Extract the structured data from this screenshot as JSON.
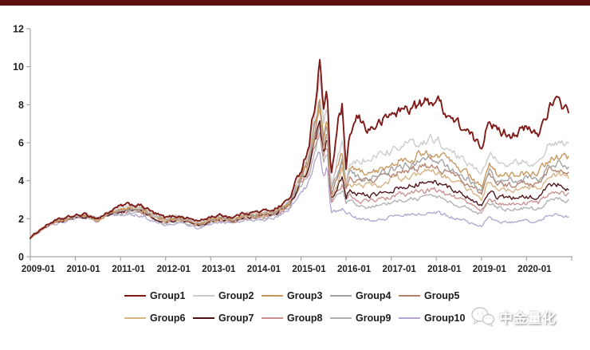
{
  "page": {
    "top_bar_color": "#5E0F10",
    "background_color": "#FFFFFF",
    "axis_line_color": "#A6A6A6",
    "watermark": {
      "text": "中金量化",
      "icon": "wechat-bubbles-icon"
    }
  },
  "chart_data": {
    "type": "line",
    "title": "",
    "xlabel": "",
    "ylabel": "",
    "grid": false,
    "legend_position": "bottom",
    "y_axis": {
      "range": [
        0,
        12
      ],
      "ticks": [
        0,
        2,
        4,
        6,
        8,
        10,
        12
      ],
      "tick_labels": [
        "0",
        "2",
        "4",
        "6",
        "8",
        "10",
        "12"
      ]
    },
    "x_axis": {
      "unit": "months since 2009-01",
      "tick_labels": [
        "2009-01",
        "2010-01",
        "2011-01",
        "2012-01",
        "2013-01",
        "2014-01",
        "2015-01",
        "2016-01",
        "2017-01",
        "2018-01",
        "2019-01",
        "2020-01"
      ],
      "range_months": [
        0,
        144
      ]
    },
    "x_months": [
      0,
      3,
      6,
      9,
      12,
      15,
      18,
      21,
      24,
      27,
      30,
      33,
      36,
      39,
      42,
      45,
      48,
      51,
      54,
      57,
      60,
      63,
      66,
      69,
      72,
      74,
      76,
      77,
      78,
      79,
      80,
      82,
      83,
      84,
      85,
      87,
      90,
      93,
      96,
      100,
      104,
      108,
      112,
      116,
      120,
      122,
      124,
      128,
      132,
      135,
      138,
      141,
      143
    ],
    "series": [
      {
        "name": "Group1",
        "color": "#7E1A17",
        "values": [
          1.0,
          1.49,
          1.85,
          2.01,
          2.16,
          2.21,
          2.01,
          2.37,
          2.65,
          2.75,
          2.65,
          2.27,
          2.05,
          2.16,
          2.03,
          1.86,
          2.11,
          2.18,
          2.08,
          2.32,
          2.35,
          2.43,
          2.59,
          3.08,
          4.59,
          5.78,
          8.5,
          10.3,
          7.7,
          8.5,
          4.2,
          7.2,
          7.9,
          4.4,
          6.4,
          7.3,
          6.7,
          7.0,
          7.5,
          7.8,
          8.0,
          8.3,
          7.3,
          6.6,
          5.7,
          7.5,
          6.6,
          6.5,
          6.7,
          6.4,
          7.9,
          8.1,
          7.7
        ]
      },
      {
        "name": "Group2",
        "color": "#CBCBCB",
        "values": [
          1.0,
          1.48,
          1.84,
          1.99,
          2.14,
          2.19,
          1.99,
          2.35,
          2.57,
          2.68,
          2.57,
          2.21,
          2.0,
          2.1,
          1.97,
          1.81,
          2.05,
          2.12,
          2.05,
          2.26,
          2.29,
          2.36,
          2.52,
          2.99,
          4.39,
          5.39,
          7.68,
          9.2,
          6.84,
          7.8,
          3.7,
          5.33,
          6.13,
          4.0,
          5.06,
          5.02,
          5.16,
          5.28,
          5.64,
          5.88,
          6.12,
          6.24,
          5.64,
          5.04,
          4.2,
          5.6,
          5.0,
          4.92,
          5.0,
          4.8,
          5.9,
          6.1,
          5.8
        ]
      },
      {
        "name": "Group3",
        "color": "#C8965A",
        "values": [
          1.0,
          1.47,
          1.83,
          1.98,
          2.13,
          2.18,
          1.98,
          2.33,
          2.54,
          2.64,
          2.54,
          2.17,
          1.97,
          2.07,
          1.95,
          1.78,
          2.02,
          2.09,
          2.02,
          2.23,
          2.26,
          2.33,
          2.48,
          2.95,
          4.28,
          5.19,
          7.34,
          8.6,
          6.43,
          7.3,
          3.5,
          4.82,
          5.49,
          3.8,
          4.62,
          4.46,
          4.52,
          4.62,
          4.94,
          5.15,
          5.36,
          5.46,
          4.94,
          4.41,
          3.78,
          4.94,
          4.36,
          4.31,
          4.41,
          4.31,
          5.15,
          5.3,
          5.1
        ]
      },
      {
        "name": "Group4",
        "color": "#A0A0A0",
        "values": [
          1.0,
          1.46,
          1.82,
          1.97,
          2.12,
          2.17,
          1.97,
          2.32,
          2.5,
          2.6,
          2.5,
          2.14,
          1.94,
          2.04,
          1.92,
          1.75,
          1.99,
          2.06,
          1.99,
          2.19,
          2.22,
          2.3,
          2.45,
          2.91,
          4.2,
          5.05,
          7.11,
          8.3,
          6.2,
          7.04,
          3.4,
          4.56,
          5.19,
          3.69,
          4.4,
          4.21,
          4.21,
          4.31,
          4.61,
          4.8,
          5.0,
          5.1,
          4.61,
          4.12,
          3.53,
          4.61,
          4.07,
          4.02,
          4.12,
          4.02,
          4.8,
          4.95,
          4.75
        ]
      },
      {
        "name": "Group5",
        "color": "#B5826E",
        "values": [
          1.0,
          1.46,
          1.81,
          1.96,
          2.11,
          2.16,
          1.96,
          2.31,
          2.46,
          2.56,
          2.46,
          2.11,
          1.91,
          2.01,
          1.89,
          1.73,
          1.96,
          2.03,
          1.96,
          2.16,
          2.19,
          2.26,
          2.41,
          2.86,
          4.12,
          4.92,
          6.87,
          8.0,
          5.96,
          6.77,
          3.3,
          4.3,
          4.9,
          3.53,
          4.14,
          3.95,
          3.96,
          4.05,
          4.32,
          4.51,
          4.69,
          4.78,
          4.32,
          3.86,
          3.31,
          4.32,
          3.82,
          3.77,
          3.86,
          3.77,
          4.51,
          4.65,
          4.46
        ]
      },
      {
        "name": "Group6",
        "color": "#D6B383",
        "values": [
          1.0,
          1.45,
          1.8,
          1.95,
          2.1,
          2.15,
          1.95,
          2.3,
          2.43,
          2.52,
          2.43,
          2.08,
          1.88,
          1.98,
          1.86,
          1.7,
          1.93,
          2.0,
          1.93,
          2.13,
          2.16,
          2.23,
          2.38,
          2.82,
          4.04,
          4.78,
          6.6,
          7.7,
          5.72,
          6.5,
          3.2,
          4.09,
          4.61,
          3.42,
          3.92,
          3.7,
          3.7,
          3.78,
          4.04,
          4.21,
          4.39,
          4.47,
          4.04,
          3.61,
          3.1,
          4.04,
          3.57,
          3.53,
          3.61,
          3.53,
          4.21,
          4.34,
          4.17
        ]
      },
      {
        "name": "Group7",
        "color": "#4C1014",
        "values": [
          1.0,
          1.44,
          1.79,
          1.94,
          2.09,
          2.14,
          1.94,
          2.29,
          2.38,
          2.47,
          2.38,
          2.04,
          1.84,
          1.94,
          1.82,
          1.67,
          1.89,
          1.96,
          1.89,
          2.09,
          2.11,
          2.18,
          2.33,
          2.76,
          3.92,
          4.61,
          6.32,
          7.3,
          5.46,
          6.2,
          3.07,
          3.78,
          4.21,
          3.19,
          3.56,
          3.32,
          3.25,
          3.32,
          3.55,
          3.7,
          3.85,
          3.93,
          3.55,
          3.17,
          2.72,
          3.55,
          3.13,
          3.1,
          3.17,
          3.1,
          3.7,
          3.81,
          3.6
        ]
      },
      {
        "name": "Group8",
        "color": "#CC8F8F",
        "values": [
          1.0,
          1.44,
          1.78,
          1.93,
          2.08,
          2.13,
          1.93,
          2.28,
          2.33,
          2.42,
          2.33,
          2.0,
          1.81,
          1.9,
          1.79,
          1.63,
          1.85,
          1.92,
          1.85,
          2.04,
          2.07,
          2.14,
          2.28,
          2.71,
          3.81,
          4.41,
          6.02,
          6.9,
          5.16,
          5.86,
          2.9,
          3.53,
          3.87,
          3.0,
          3.3,
          2.98,
          2.9,
          2.97,
          3.17,
          3.31,
          3.44,
          3.51,
          3.17,
          2.84,
          2.43,
          3.17,
          2.8,
          2.77,
          2.84,
          2.77,
          3.31,
          3.41,
          3.27
        ]
      },
      {
        "name": "Group9",
        "color": "#B0B0B0",
        "values": [
          1.0,
          1.42,
          1.76,
          1.91,
          2.06,
          2.11,
          1.91,
          2.25,
          2.27,
          2.36,
          2.27,
          1.94,
          1.76,
          1.85,
          1.74,
          1.59,
          1.8,
          1.87,
          1.8,
          1.99,
          2.02,
          2.08,
          2.22,
          2.64,
          3.69,
          4.21,
          5.71,
          6.5,
          4.87,
          5.53,
          2.74,
          3.27,
          3.58,
          2.81,
          3.08,
          2.72,
          2.62,
          2.68,
          2.87,
          2.99,
          3.11,
          3.17,
          2.87,
          2.56,
          2.2,
          2.87,
          2.53,
          2.5,
          2.56,
          2.5,
          2.99,
          3.08,
          2.96
        ]
      },
      {
        "name": "Group10",
        "color": "#B3A6CF",
        "values": [
          1.0,
          1.39,
          1.73,
          1.87,
          2.02,
          2.06,
          1.87,
          2.21,
          2.16,
          2.24,
          2.16,
          1.85,
          1.67,
          1.76,
          1.65,
          1.51,
          1.72,
          1.78,
          1.72,
          1.89,
          1.92,
          1.98,
          2.11,
          2.51,
          3.44,
          3.82,
          5.07,
          5.6,
          4.19,
          4.76,
          2.38,
          2.37,
          2.45,
          2.2,
          2.29,
          2.0,
          1.91,
          1.96,
          2.09,
          2.18,
          2.27,
          2.31,
          2.09,
          1.87,
          1.6,
          2.09,
          1.85,
          1.82,
          1.87,
          1.82,
          2.18,
          2.25,
          2.16
        ]
      }
    ]
  }
}
